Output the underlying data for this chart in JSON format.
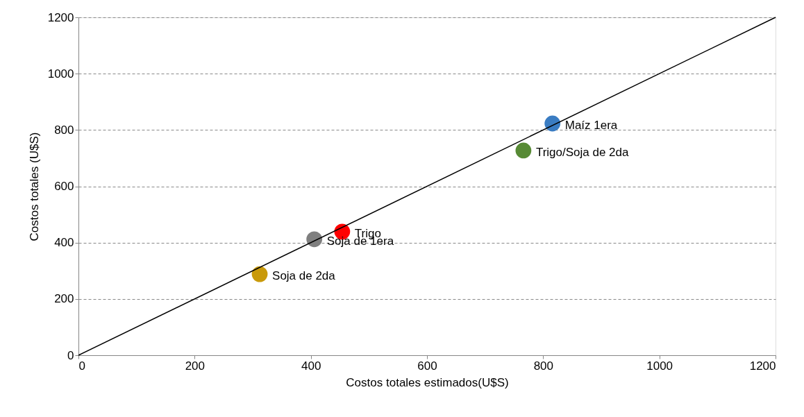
{
  "chart_data": {
    "type": "scatter",
    "xlabel": "Costos totales estimados(U$S)",
    "ylabel": "Costos totales (U$S)",
    "xlim": [
      0,
      1200
    ],
    "ylim": [
      0,
      1200
    ],
    "xticks": [
      0,
      200,
      400,
      600,
      800,
      1000,
      1200
    ],
    "yticks": [
      0,
      200,
      400,
      600,
      800,
      1000,
      1200
    ],
    "grid": "y",
    "marker": "circle",
    "series": [
      {
        "name": "Maíz 1era",
        "color": "#3a7cc2",
        "x": [
          816
        ],
        "values": [
          823
        ]
      },
      {
        "name": "Trigo/Soja de 2da",
        "color": "#578a35",
        "x": [
          766
        ],
        "values": [
          727
        ]
      },
      {
        "name": "Trigo",
        "color": "#ff0000",
        "x": [
          454
        ],
        "values": [
          439
        ]
      },
      {
        "name": "Soja de 1era",
        "color": "#7f7f7f",
        "x": [
          406
        ],
        "values": [
          412
        ]
      },
      {
        "name": "Soja de 2da",
        "color": "#c99a0b",
        "x": [
          312
        ],
        "values": [
          288
        ]
      },
      {
        "type": "line",
        "color": "#000000",
        "x": [
          0,
          1200
        ],
        "values": [
          0,
          1200
        ],
        "line_style": "solid",
        "marker": "none"
      }
    ]
  }
}
